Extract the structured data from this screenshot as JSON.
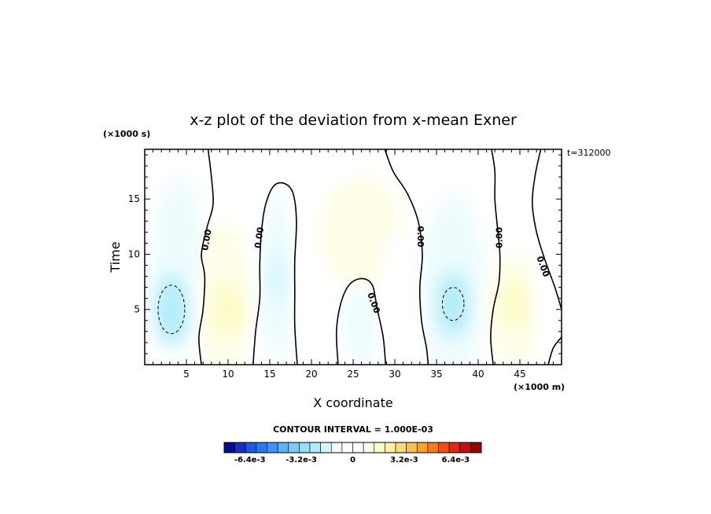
{
  "chart_data": {
    "type": "heatmap",
    "title": "x-z plot of the deviation from x-mean Exner",
    "xlabel": "X coordinate",
    "ylabel": "Time",
    "x_unit": "(×1000 m)",
    "y_unit": "(×1000 s)",
    "time_label": "t=312000",
    "xlim": [
      0,
      50
    ],
    "ylim": [
      0,
      19.5
    ],
    "xticks": [
      5,
      10,
      15,
      20,
      25,
      30,
      35,
      40,
      45
    ],
    "yticks": [
      5,
      10,
      15
    ],
    "contour_interval_text": "CONTOUR INTERVAL = 1.000E-03",
    "contour_labels": [
      "0.00",
      "0.00",
      "0.00",
      "0.00",
      "0.00",
      "0.00"
    ],
    "colorbar": {
      "min": -0.008,
      "max": 0.008,
      "tick_values": [
        -0.0064,
        -0.0032,
        0,
        0.0032,
        0.0064
      ],
      "tick_labels": [
        "-6.4e-3",
        "-3.2e-3",
        "0",
        "3.2e-3",
        "6.4e-3"
      ],
      "colors": [
        "#0a0a9a",
        "#1530c8",
        "#1e5ae0",
        "#2878f0",
        "#3c96f8",
        "#5ab4fc",
        "#78ccfc",
        "#96defa",
        "#b4ecfa",
        "#d2f6fc",
        "#eefcfe",
        "#ffffff",
        "#ffffff",
        "#fefee8",
        "#fcfcc8",
        "#fcf4a4",
        "#fcdc78",
        "#fcc050",
        "#fca030",
        "#f87c1c",
        "#f05014",
        "#e02810",
        "#c01008",
        "#980404"
      ]
    },
    "regions": [
      {
        "x": 4.0,
        "y": 9.0,
        "rx": 3.2,
        "ry": 8.0,
        "value": -0.0012
      },
      {
        "x": 3.2,
        "y": 5.0,
        "rx": 2.0,
        "ry": 3.2,
        "value": -0.0022
      },
      {
        "x": 9.5,
        "y": 6.0,
        "rx": 3.0,
        "ry": 7.0,
        "value": 0.0008
      },
      {
        "x": 10.0,
        "y": 5.0,
        "rx": 2.0,
        "ry": 2.5,
        "value": 0.0014
      },
      {
        "x": 16.0,
        "y": 8.0,
        "rx": 2.5,
        "ry": 7.5,
        "value": -0.0008
      },
      {
        "x": 16.2,
        "y": 8.0,
        "rx": 1.2,
        "ry": 2.5,
        "value": -0.0018
      },
      {
        "x": 20.5,
        "y": 10.0,
        "rx": 3.0,
        "ry": 9.0,
        "value": 0.0005
      },
      {
        "x": 26.0,
        "y": 12.0,
        "rx": 5.0,
        "ry": 5.0,
        "value": 0.0009
      },
      {
        "x": 26.0,
        "y": 3.5,
        "rx": 2.2,
        "ry": 3.5,
        "value": -0.0012
      },
      {
        "x": 30.5,
        "y": 6.0,
        "rx": 2.5,
        "ry": 6.0,
        "value": 0.0006
      },
      {
        "x": 37.0,
        "y": 7.0,
        "rx": 3.8,
        "ry": 8.5,
        "value": -0.0013
      },
      {
        "x": 37.0,
        "y": 5.5,
        "rx": 2.0,
        "ry": 3.0,
        "value": -0.0022
      },
      {
        "x": 44.5,
        "y": 5.0,
        "rx": 3.5,
        "ry": 5.0,
        "value": 0.0008
      },
      {
        "x": 44.5,
        "y": 5.5,
        "rx": 2.0,
        "ry": 2.0,
        "value": 0.0014
      },
      {
        "x": 48.5,
        "y": 8.0,
        "rx": 1.8,
        "ry": 9.0,
        "value": -0.0006
      },
      {
        "x": 43.5,
        "y": 16.0,
        "rx": 3.0,
        "ry": 4.0,
        "value": 0.0004
      }
    ],
    "background_left_value": -0.0004,
    "background_right_value": -0.0004,
    "background_middle_value": 0.0003,
    "zero_contours": [
      [
        [
          6.8,
          0
        ],
        [
          6.5,
          2.5
        ],
        [
          7.0,
          5.0
        ],
        [
          7.2,
          8.0
        ],
        [
          6.8,
          10.0
        ],
        [
          7.5,
          12.5
        ],
        [
          8.2,
          14.5
        ],
        [
          8.0,
          17.0
        ],
        [
          7.6,
          19.5
        ]
      ],
      [
        [
          13.0,
          0
        ],
        [
          13.3,
          3.0
        ],
        [
          13.8,
          6.0
        ],
        [
          13.8,
          9.0
        ],
        [
          14.0,
          12.0
        ],
        [
          14.5,
          14.5
        ],
        [
          15.5,
          16.2
        ],
        [
          16.8,
          16.4
        ],
        [
          17.8,
          15.5
        ],
        [
          18.2,
          13.0
        ],
        [
          18.0,
          9.5
        ],
        [
          18.0,
          6.5
        ],
        [
          18.0,
          3.5
        ],
        [
          18.3,
          0
        ]
      ],
      [
        [
          23.2,
          0
        ],
        [
          23.0,
          3.0
        ],
        [
          23.5,
          5.5
        ],
        [
          24.5,
          7.2
        ],
        [
          26.0,
          7.8
        ],
        [
          27.3,
          7.2
        ],
        [
          27.9,
          5.0
        ],
        [
          28.6,
          2.5
        ],
        [
          28.9,
          0
        ]
      ],
      [
        [
          28.8,
          19.5
        ],
        [
          29.8,
          17.5
        ],
        [
          31.5,
          15.5
        ],
        [
          32.8,
          13.0
        ],
        [
          33.3,
          10.0
        ],
        [
          33.0,
          7.0
        ],
        [
          33.2,
          4.0
        ],
        [
          33.8,
          1.5
        ],
        [
          34.0,
          0
        ]
      ],
      [
        [
          41.8,
          0
        ],
        [
          41.5,
          2.5
        ],
        [
          41.8,
          5.0
        ],
        [
          42.5,
          7.5
        ],
        [
          42.6,
          10.0
        ],
        [
          42.3,
          12.5
        ],
        [
          42.0,
          15.0
        ],
        [
          42.0,
          17.5
        ],
        [
          41.6,
          19.5
        ]
      ],
      [
        [
          47.5,
          19.5
        ],
        [
          46.8,
          17.0
        ],
        [
          46.5,
          14.5
        ],
        [
          47.0,
          12.0
        ],
        [
          48.0,
          9.5
        ],
        [
          49.2,
          7.0
        ],
        [
          50.0,
          5.0
        ]
      ],
      [
        [
          50.0,
          2.5
        ],
        [
          49.0,
          1.5
        ],
        [
          48.4,
          0
        ]
      ]
    ],
    "negative_contours": [
      {
        "x": 3.2,
        "y": 5.0,
        "rx": 1.6,
        "ry": 2.2
      },
      {
        "x": 37.0,
        "y": 5.5,
        "rx": 1.3,
        "ry": 1.5
      }
    ]
  }
}
